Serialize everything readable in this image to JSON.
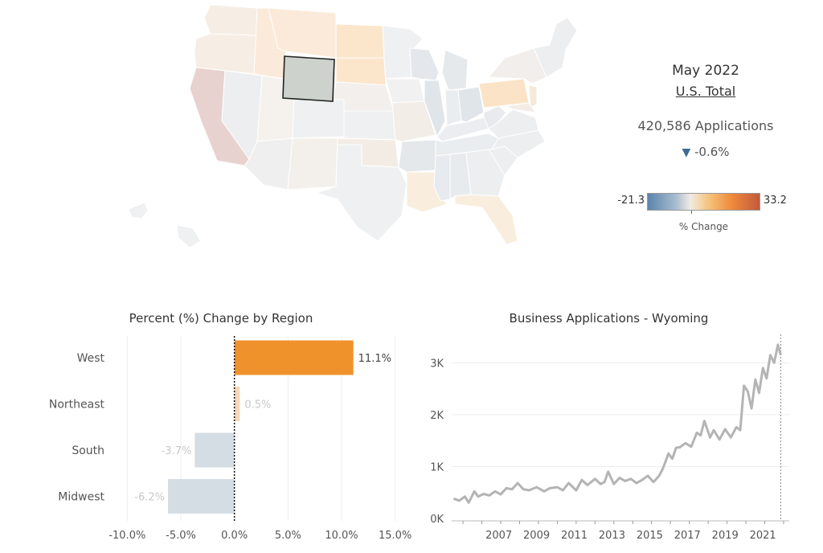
{
  "summary": {
    "date": "May 2022",
    "place": "U.S. Total",
    "applications": "420,586 Applications",
    "change_arrow": "▼",
    "change": "-0.6%"
  },
  "legend": {
    "min": "-21.3",
    "max": "33.2",
    "title": "% Change"
  },
  "colors": {
    "positive_strong": "#f0922b",
    "positive_light": "#f6d8b8",
    "negative_light": "#d5dde4",
    "line": "#b4b4b4",
    "selected_state": "#cdd2cc"
  },
  "map": {
    "selected_state": "Wyoming",
    "icon": "us-states-map"
  },
  "chart_data": [
    {
      "type": "bar",
      "title": "Percent (%) Change by Region",
      "categories": [
        "West",
        "Northeast",
        "South",
        "Midwest"
      ],
      "values": [
        11.1,
        0.5,
        -3.7,
        -6.2
      ],
      "value_labels": [
        "11.1%",
        "0.5%",
        "-3.7%",
        "-6.2%"
      ],
      "xlim": [
        -11,
        16
      ],
      "ticks": [
        -10,
        -5,
        0,
        5,
        10,
        15
      ],
      "tick_labels": [
        "-10.0%",
        "-5.0%",
        "0.0%",
        "5.0%",
        "10.0%",
        "15.0%"
      ],
      "orientation": "horizontal",
      "grid": true
    },
    {
      "type": "line",
      "title": "Business Applications - Wyoming",
      "x_ticks": [
        2007,
        2009,
        2011,
        2013,
        2015,
        2017,
        2019,
        2021
      ],
      "y_ticks": [
        0,
        1000,
        2000,
        3000
      ],
      "y_tick_labels": [
        "0K",
        "1K",
        "2K",
        "3K"
      ],
      "xlim": [
        2004.9,
        2022.8
      ],
      "ylim": [
        -50,
        3550
      ],
      "grid": true,
      "series": [
        {
          "x": [
            2005.0,
            2005.3,
            2005.6,
            2005.8,
            2006.1,
            2006.3,
            2006.6,
            2006.9,
            2007.2,
            2007.5,
            2007.8,
            2008.1,
            2008.4,
            2008.7,
            2009.0,
            2009.4,
            2009.8,
            2010.1,
            2010.5,
            2010.8,
            2011.1,
            2011.5,
            2011.8,
            2012.1,
            2012.5,
            2012.8,
            2013.0,
            2013.2,
            2013.5,
            2013.8,
            2014.1,
            2014.4,
            2014.7,
            2015.0,
            2015.3,
            2015.6,
            2015.9,
            2016.1,
            2016.4,
            2016.6,
            2016.8,
            2017.0,
            2017.3,
            2017.6,
            2017.9,
            2018.1,
            2018.3,
            2018.6,
            2018.8,
            2019.1,
            2019.4,
            2019.7,
            2020.0,
            2020.2,
            2020.4,
            2020.6,
            2020.8,
            2021.0,
            2021.2,
            2021.4,
            2021.6,
            2021.8,
            2022.0,
            2022.2,
            2022.35
          ],
          "y": [
            380,
            340,
            420,
            300,
            520,
            420,
            470,
            440,
            520,
            460,
            580,
            560,
            680,
            560,
            540,
            600,
            520,
            580,
            600,
            540,
            680,
            540,
            740,
            640,
            760,
            660,
            700,
            900,
            660,
            780,
            720,
            760,
            680,
            740,
            820,
            700,
            820,
            960,
            1250,
            1150,
            1360,
            1370,
            1450,
            1380,
            1650,
            1600,
            1880,
            1560,
            1700,
            1520,
            1720,
            1560,
            1760,
            1700,
            2560,
            2450,
            2120,
            2680,
            2420,
            2900,
            2700,
            3150,
            3000,
            3350,
            3150
          ],
          "vline_x": 2022.35
        }
      ]
    }
  ]
}
